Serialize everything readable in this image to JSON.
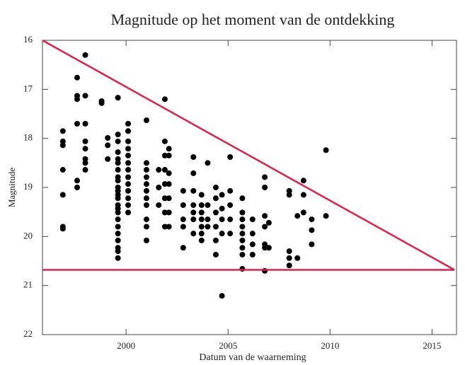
{
  "chart_data": {
    "type": "scatter",
    "title": "Magnitude op het moment van de ontdekking",
    "xlabel": "Datum van de waarneming",
    "ylabel": "Magnitude",
    "xlim": [
      1995.9,
      2016.2
    ],
    "xticks": [
      2000,
      2005,
      2010,
      2015
    ],
    "ylim": [
      22,
      16
    ],
    "yticks": [
      16,
      17,
      18,
      19,
      20,
      21,
      22
    ],
    "color": "#000000",
    "x": [
      1996.9,
      1996.9,
      1996.9,
      1996.9,
      1996.9,
      1996.9,
      1996.9,
      1997.6,
      1997.6,
      1997.6,
      1997.6,
      1997.6,
      1997.6,
      1998.0,
      1998.0,
      1998.0,
      1998.0,
      1998.0,
      1998.0,
      1998.0,
      1998.0,
      1998.8,
      1998.8,
      1999.1,
      1999.1,
      1999.1,
      1999.6,
      1999.6,
      1999.6,
      1999.6,
      1999.6,
      1999.6,
      1999.6,
      1999.6,
      1999.6,
      1999.6,
      1999.6,
      1999.6,
      1999.6,
      1999.6,
      1999.6,
      1999.6,
      1999.6,
      1999.6,
      1999.6,
      1999.6,
      1999.6,
      1999.6,
      1999.6,
      2000.1,
      2000.1,
      2000.1,
      2000.1,
      2000.1,
      2000.1,
      2000.1,
      2000.1,
      2000.1,
      2000.1,
      2000.1,
      2000.1,
      2000.1,
      2001.0,
      2001.0,
      2001.0,
      2001.0,
      2001.0,
      2001.0,
      2001.0,
      2001.0,
      2001.0,
      2001.0,
      2001.0,
      2001.6,
      2001.6,
      2001.6,
      2001.9,
      2001.9,
      2001.9,
      2001.9,
      2001.9,
      2001.9,
      2001.9,
      2001.9,
      2002.1,
      2002.1,
      2002.1,
      2002.1,
      2002.1,
      2002.1,
      2002.1,
      2002.8,
      2002.8,
      2002.8,
      2002.8,
      2002.8,
      2003.3,
      2003.3,
      2003.3,
      2003.3,
      2003.3,
      2003.3,
      2003.3,
      2003.7,
      2003.7,
      2003.7,
      2003.7,
      2003.7,
      2003.7,
      2003.7,
      2004.0,
      2004.0,
      2004.0,
      2004.0,
      2004.4,
      2004.4,
      2004.4,
      2004.4,
      2004.4,
      2004.4,
      2004.7,
      2004.7,
      2004.7,
      2004.7,
      2004.7,
      2005.1,
      2005.1,
      2005.1,
      2005.1,
      2005.1,
      2005.7,
      2005.7,
      2005.7,
      2005.7,
      2005.7,
      2005.7,
      2005.7,
      2005.7,
      2005.7,
      2006.2,
      2006.2,
      2006.2,
      2006.2,
      2006.8,
      2006.8,
      2006.8,
      2006.8,
      2006.8,
      2006.8,
      2006.8,
      2007.0,
      2007.0,
      2008.0,
      2008.0,
      2008.0,
      2008.0,
      2008.0,
      2008.4,
      2008.4,
      2008.7,
      2008.7,
      2008.7,
      2009.1,
      2009.1,
      2009.1,
      2009.8,
      2009.8
    ],
    "values": [
      17.85,
      18.06,
      18.14,
      18.64,
      19.15,
      19.8,
      19.84,
      16.76,
      17.13,
      17.2,
      17.7,
      18.86,
      19.0,
      16.3,
      17.13,
      17.7,
      18.06,
      18.21,
      18.42,
      18.5,
      18.64,
      17.24,
      17.28,
      17.99,
      18.14,
      18.42,
      17.17,
      17.92,
      18.06,
      18.28,
      18.42,
      18.5,
      18.64,
      18.79,
      18.86,
      19.0,
      19.07,
      19.15,
      19.22,
      19.36,
      19.43,
      19.51,
      19.65,
      19.8,
      19.94,
      20.08,
      20.23,
      20.3,
      20.44,
      17.7,
      17.85,
      18.06,
      18.21,
      18.35,
      18.5,
      18.64,
      18.79,
      18.93,
      19.07,
      19.22,
      19.36,
      19.51,
      17.63,
      18.5,
      18.64,
      18.79,
      18.93,
      19.07,
      19.22,
      19.36,
      19.65,
      19.8,
      20.08,
      18.64,
      19.0,
      19.36,
      17.2,
      18.06,
      18.35,
      18.64,
      18.93,
      19.22,
      19.51,
      19.8,
      18.21,
      18.35,
      18.71,
      18.93,
      19.22,
      19.51,
      19.8,
      19.07,
      19.36,
      19.65,
      19.8,
      20.23,
      18.38,
      18.71,
      19.07,
      19.36,
      19.51,
      19.65,
      19.94,
      19.15,
      19.36,
      19.51,
      19.65,
      19.8,
      19.94,
      20.08,
      18.5,
      19.36,
      19.65,
      19.8,
      19.0,
      19.22,
      19.51,
      19.8,
      20.08,
      20.37,
      19.15,
      19.43,
      19.65,
      19.94,
      21.21,
      18.38,
      19.07,
      19.36,
      19.65,
      19.94,
      19.22,
      19.51,
      19.65,
      19.8,
      19.94,
      20.08,
      20.23,
      20.37,
      20.66,
      19.65,
      19.94,
      20.16,
      20.37,
      18.79,
      19.0,
      19.58,
      19.8,
      20.16,
      20.23,
      20.7,
      19.72,
      20.23,
      19.07,
      19.15,
      20.3,
      20.44,
      20.59,
      19.58,
      20.44,
      18.86,
      19.15,
      19.51,
      19.65,
      19.87,
      20.16,
      18.24,
      19.58
    ],
    "lines": [
      {
        "x": [
          1995.9,
          2016.1
        ],
        "y": [
          16,
          20.68
        ],
        "color": "#e0204a"
      },
      {
        "x": [
          1995.9,
          2016.1
        ],
        "y": [
          20.68,
          20.68
        ],
        "color": "#e0204a"
      }
    ]
  }
}
